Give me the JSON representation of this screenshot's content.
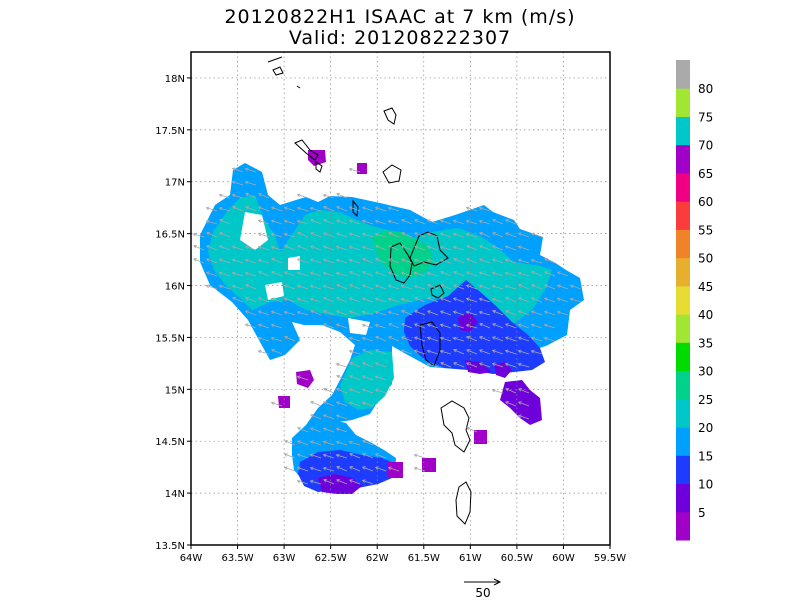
{
  "title": {
    "line1": "20120822H1 ISAAC at 7 km (m/s)",
    "line2": "Valid: 201208222307"
  },
  "map": {
    "lon_range": [
      -64.0,
      -59.5
    ],
    "lat_range": [
      13.5,
      18.25
    ],
    "x_ticks": [
      "64W",
      "63.5W",
      "63W",
      "62.5W",
      "62W",
      "61.5W",
      "61W",
      "60.5W",
      "60W",
      "59.5W"
    ],
    "y_ticks": [
      "13.5N",
      "14N",
      "14.5N",
      "15N",
      "15.5N",
      "16N",
      "16.5N",
      "17N",
      "17.5N",
      "18N"
    ],
    "grid": true,
    "field": "wind speed (m/s)",
    "vectors": "wind direction arrows, predominantly from east-southeast",
    "reference_vector_label": "50"
  },
  "colorbar": {
    "ticks": [
      "5",
      "10",
      "15",
      "20",
      "25",
      "30",
      "35",
      "40",
      "45",
      "50",
      "55",
      "60",
      "65",
      "70",
      "75",
      "80"
    ],
    "colors": [
      "#a000c8",
      "#6e00dc",
      "#1e3cff",
      "#00a0ff",
      "#00c8c8",
      "#00d28c",
      "#00dc00",
      "#a0e632",
      "#e6dc32",
      "#e6af2d",
      "#f08228",
      "#fa3c3c",
      "#f00082",
      "#a000c8",
      "#00c8c8",
      "#a0e632",
      "#aaaaaa"
    ]
  }
}
